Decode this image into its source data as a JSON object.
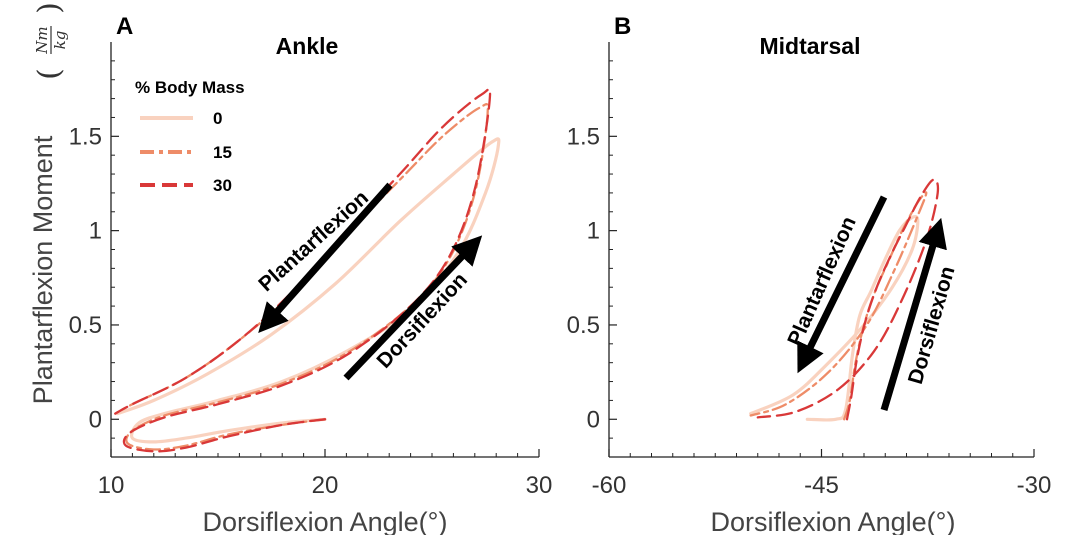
{
  "chart_data": [
    {
      "panel": "A",
      "title": "Ankle",
      "type": "line",
      "xlabel": "Dorsiflexion Angle(°)",
      "ylabel": "Plantarflexion Moment",
      "ylabel_unit": {
        "numerator": "Nm",
        "denominator": "kg"
      },
      "xlim": [
        10,
        30
      ],
      "ylim": [
        -0.2,
        2.0
      ],
      "xticks": [
        "10",
        "20",
        "30"
      ],
      "yticks": [
        "0",
        "0.5",
        "1",
        "1.5"
      ],
      "ytick_values": [
        0,
        0.5,
        1,
        1.5
      ],
      "xtick_values": [
        10,
        20,
        30
      ],
      "legend": {
        "title": "% Body Mass",
        "position": "top-left"
      },
      "annotations": [
        "Plantarflexion",
        "Dorsiflexion"
      ],
      "series": [
        {
          "name": "0",
          "color": "#f9d2bf",
          "style": "solid",
          "x": [
            20.0,
            18.0,
            15.5,
            13.5,
            12.0,
            11.0,
            11.3,
            12.5,
            15.0,
            18.0,
            21.0,
            24.0,
            26.2,
            27.5,
            28.1,
            27.8,
            26.0,
            23.5,
            20.5,
            17.5,
            14.5,
            12.0,
            10.3
          ],
          "y": [
            0.0,
            -0.02,
            -0.06,
            -0.1,
            -0.12,
            -0.1,
            -0.02,
            0.03,
            0.1,
            0.2,
            0.36,
            0.58,
            0.88,
            1.2,
            1.45,
            1.47,
            1.3,
            1.05,
            0.72,
            0.45,
            0.24,
            0.1,
            0.03
          ]
        },
        {
          "name": "15",
          "color": "#ee8c68",
          "style": "dashdot",
          "x": [
            20.0,
            18.0,
            15.5,
            13.5,
            12.0,
            10.8,
            11.0,
            12.5,
            15.0,
            18.0,
            21.0,
            24.0,
            25.8,
            27.0,
            27.6,
            27.2,
            25.5,
            23.5,
            21.0,
            18.5,
            16.0,
            13.5,
            11.0,
            10.2
          ],
          "y": [
            0.0,
            -0.03,
            -0.08,
            -0.14,
            -0.16,
            -0.13,
            -0.06,
            0.02,
            0.09,
            0.19,
            0.35,
            0.6,
            0.85,
            1.2,
            1.62,
            1.65,
            1.5,
            1.27,
            0.98,
            0.67,
            0.42,
            0.22,
            0.08,
            0.03
          ]
        },
        {
          "name": "30",
          "color": "#d93838",
          "style": "dashed",
          "x": [
            20.0,
            18.0,
            15.5,
            13.5,
            12.0,
            10.7,
            10.9,
            12.5,
            15.0,
            18.0,
            21.0,
            24.0,
            25.8,
            27.0,
            27.7,
            27.3,
            25.5,
            23.5,
            21.0,
            18.5,
            16.0,
            13.5,
            11.0,
            10.2
          ],
          "y": [
            0.0,
            -0.03,
            -0.09,
            -0.15,
            -0.17,
            -0.14,
            -0.07,
            0.01,
            0.08,
            0.18,
            0.34,
            0.6,
            0.86,
            1.22,
            1.7,
            1.72,
            1.55,
            1.3,
            1.0,
            0.68,
            0.42,
            0.22,
            0.08,
            0.03
          ]
        }
      ]
    },
    {
      "panel": "B",
      "title": "Midtarsal",
      "type": "line",
      "xlabel": "Dorsiflexion Angle(°)",
      "xlim": [
        -60,
        -30
      ],
      "ylim": [
        -0.2,
        2.0
      ],
      "xticks": [
        "-60",
        "-45",
        "-30"
      ],
      "yticks": [
        "0",
        "0.5",
        "1",
        "1.5"
      ],
      "ytick_values": [
        0,
        0.5,
        1,
        1.5
      ],
      "xtick_values": [
        -60,
        -45,
        -30
      ],
      "annotations": [
        "Plantarflexion",
        "Dorsiflexion"
      ],
      "series": [
        {
          "name": "0",
          "color": "#f9d2bf",
          "style": "solid",
          "x": [
            -46.0,
            -44.0,
            -43.3,
            -42.8,
            -42.3,
            -41.5,
            -40.5,
            -39.5,
            -38.6,
            -38.2,
            -38.6,
            -40.0,
            -42.0,
            -44.5,
            -47.0,
            -50.0
          ],
          "y": [
            0.0,
            0.0,
            0.05,
            0.35,
            0.55,
            0.68,
            0.85,
            1.0,
            1.07,
            1.05,
            0.9,
            0.7,
            0.5,
            0.3,
            0.13,
            0.03
          ]
        },
        {
          "name": "15",
          "color": "#ee8c68",
          "style": "dashdot",
          "x": [
            -43.4,
            -43.0,
            -42.6,
            -42.0,
            -41.2,
            -40.2,
            -39.3,
            -38.2,
            -37.6,
            -38.2,
            -39.8,
            -41.8,
            -44.5,
            -47.5,
            -50.0
          ],
          "y": [
            0.0,
            0.1,
            0.3,
            0.5,
            0.68,
            0.85,
            1.0,
            1.15,
            1.2,
            1.08,
            0.8,
            0.5,
            0.25,
            0.08,
            0.02
          ]
        },
        {
          "name": "30",
          "color": "#d93838",
          "style": "dashed",
          "x": [
            -43.2,
            -42.9,
            -42.5,
            -41.9,
            -41.1,
            -40.1,
            -39.1,
            -38.0,
            -37.1,
            -36.8,
            -37.6,
            -39.4,
            -41.3,
            -43.8,
            -46.8,
            -49.5
          ],
          "y": [
            0.0,
            0.12,
            0.32,
            0.52,
            0.7,
            0.87,
            1.02,
            1.18,
            1.27,
            1.2,
            0.95,
            0.62,
            0.36,
            0.16,
            0.04,
            0.01
          ]
        }
      ]
    }
  ]
}
